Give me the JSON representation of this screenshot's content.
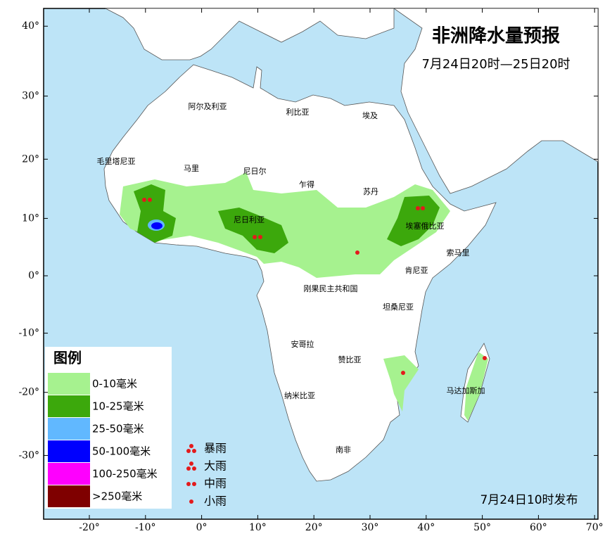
{
  "map": {
    "title": "非洲降水量预报",
    "subtitle": "7月24日20时—25日20时",
    "issued": "7月24日10时发布",
    "lat_ticks": [
      {
        "value": 40,
        "label": "40°"
      },
      {
        "value": 30,
        "label": "30°"
      },
      {
        "value": 20,
        "label": "20°"
      },
      {
        "value": 10,
        "label": "10°"
      },
      {
        "value": 0,
        "label": "0°"
      },
      {
        "value": -10,
        "label": "-10°"
      },
      {
        "value": -20,
        "label": "-20°"
      },
      {
        "value": -30,
        "label": "-30°"
      }
    ],
    "lon_ticks": [
      {
        "value": -20,
        "label": "-20°"
      },
      {
        "value": -10,
        "label": "-10°"
      },
      {
        "value": 0,
        "label": "0°"
      },
      {
        "value": 10,
        "label": "10°"
      },
      {
        "value": 20,
        "label": "20°"
      },
      {
        "value": 30,
        "label": "30°"
      },
      {
        "value": 40,
        "label": "40°"
      },
      {
        "value": 50,
        "label": "50°"
      },
      {
        "value": 60,
        "label": "60°"
      },
      {
        "value": 70,
        "label": "70°"
      }
    ],
    "countries": [
      "阿尔及利亚",
      "利比亚",
      "埃及",
      "毛里塔尼亚",
      "马里",
      "尼日尔",
      "乍得",
      "苏丹",
      "尼日利亚",
      "埃塞俄比亚",
      "索马里",
      "肯尼亚",
      "刚果民主共和国",
      "坦桑尼亚",
      "安哥拉",
      "赞比亚",
      "马达加斯加",
      "纳米比亚",
      "南非"
    ],
    "legend": {
      "title": "图例",
      "items": [
        {
          "label": "0-10毫米",
          "color": "#a6f28f"
        },
        {
          "label": "10-25毫米",
          "color": "#3ca80c"
        },
        {
          "label": "25-50毫米",
          "color": "#61b8ff"
        },
        {
          "label": "50-100毫米",
          "color": "#0000fe"
        },
        {
          "label": "100-250毫米",
          "color": "#fe00fe"
        },
        {
          "label": ">250毫米",
          "color": "#7f0000"
        }
      ],
      "symbols": [
        {
          "label": "暴雨",
          "dots": 3
        },
        {
          "label": "大雨",
          "dots": 3
        },
        {
          "label": "中雨",
          "dots": 2
        },
        {
          "label": "小雨",
          "dots": 1
        }
      ]
    }
  }
}
